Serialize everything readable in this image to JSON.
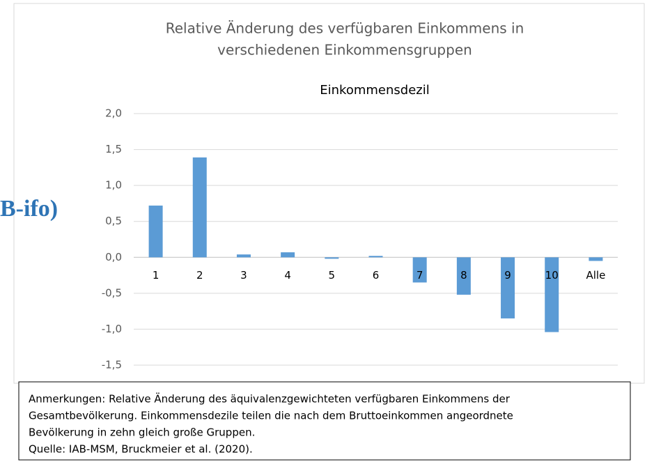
{
  "chart_data": {
    "type": "bar",
    "title": [
      "Relative Änderung des verfügbaren Einkommens in",
      "verschiedenen Einkommensgruppen"
    ],
    "subtitle": "Einkommensdezil",
    "categories": [
      "1",
      "2",
      "3",
      "4",
      "5",
      "6",
      "7",
      "8",
      "9",
      "10",
      "Alle"
    ],
    "values": [
      0.72,
      1.39,
      0.04,
      0.07,
      -0.02,
      0.02,
      -0.35,
      -0.52,
      -0.85,
      -1.04,
      -0.05
    ],
    "color": "#5b9bd5",
    "ylim": [
      -1.5,
      2.0
    ],
    "yticks": [
      {
        "value": 2.0,
        "label": "2,0"
      },
      {
        "value": 1.5,
        "label": "1,5"
      },
      {
        "value": 1.0,
        "label": "1,0"
      },
      {
        "value": 0.5,
        "label": "0,5"
      },
      {
        "value": 0.0,
        "label": "0,0"
      },
      {
        "value": -0.5,
        "label": "-0,5"
      },
      {
        "value": -1.0,
        "label": "-1,0"
      },
      {
        "value": -1.5,
        "label": "-1,5"
      }
    ],
    "grid": true
  },
  "note": [
    "Anmerkungen: Relative Änderung des äquivalenzgewichteten verfügbaren Einkommens der",
    "Gesamtbevölkerung. Einkommensdezile teilen die nach dem Bruttoeinkommen angeordnete",
    "Bevölkerung in zehn gleich große Gruppen.",
    "Quelle: IAB-MSM, Bruckmeier et al. (2020)."
  ],
  "overlay_text": "B-ifo)"
}
